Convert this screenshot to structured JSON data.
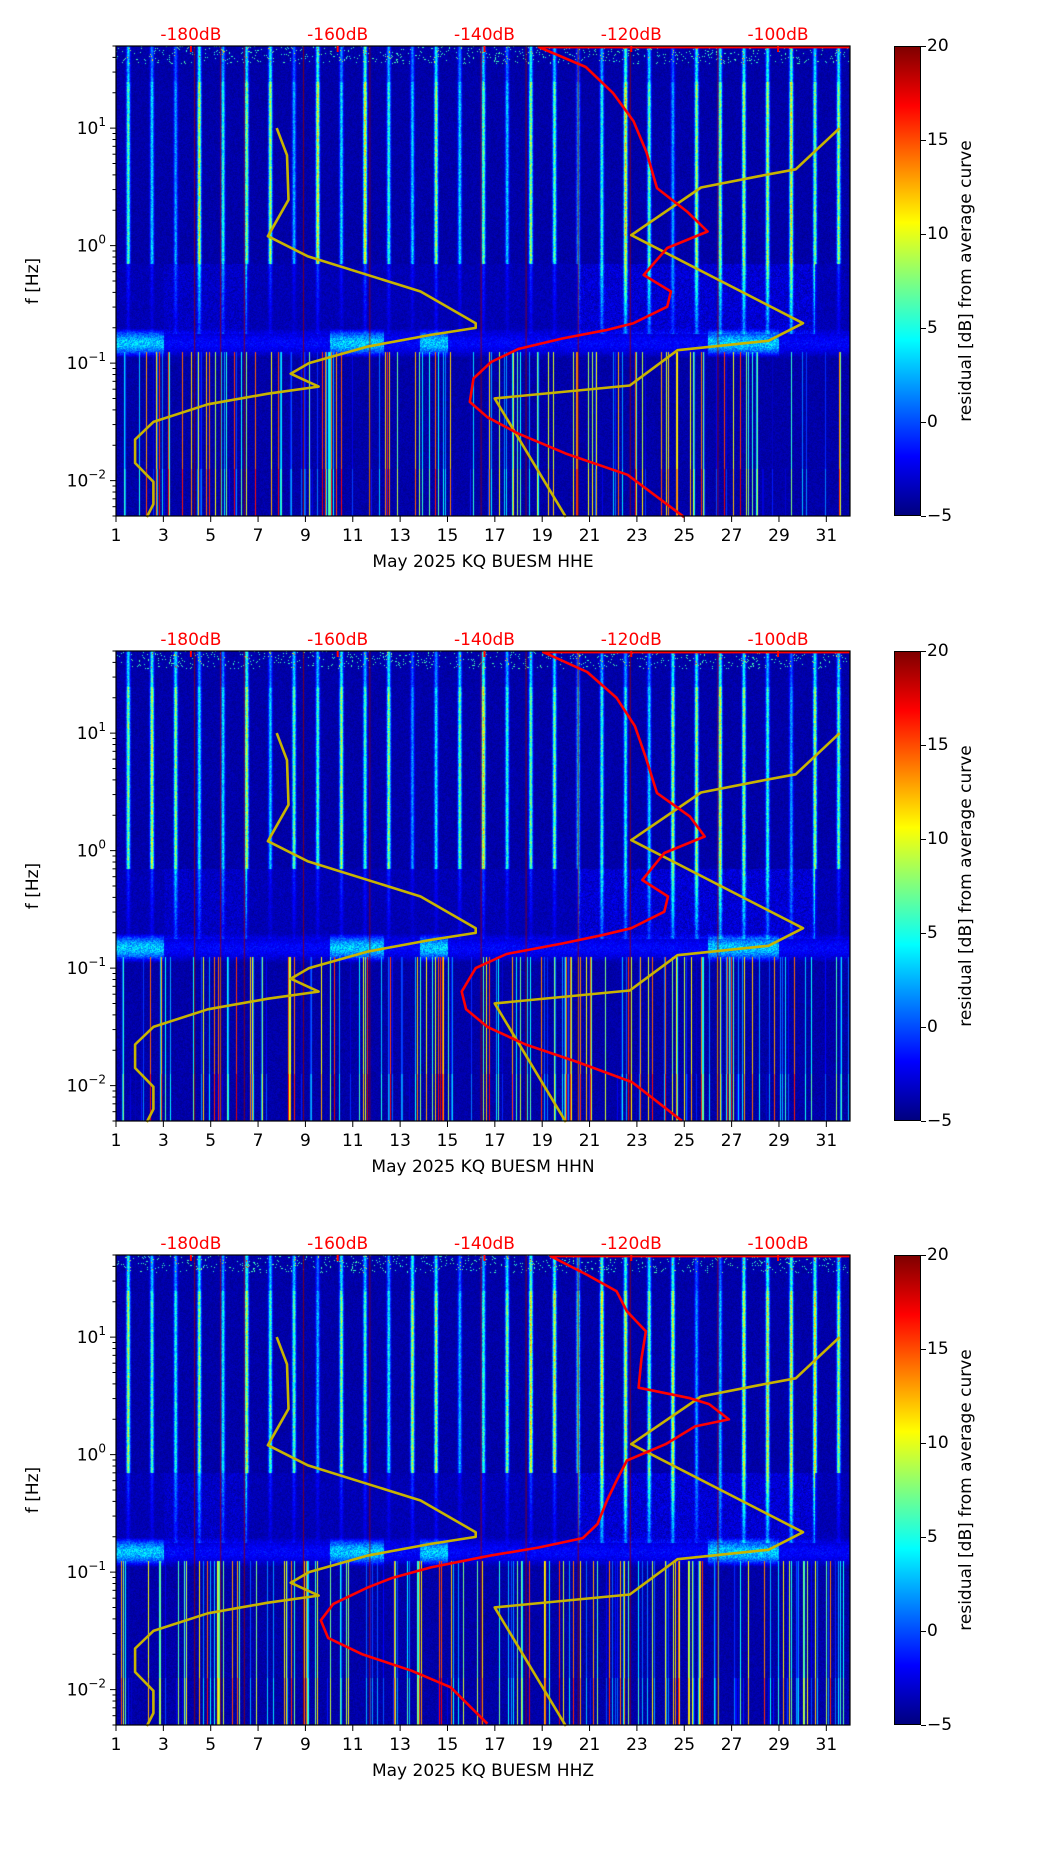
{
  "chart_data": [
    {
      "type": "heatmap",
      "xlabel": "May 2025 KQ BUESM  HHE",
      "ylabel": "f [Hz]",
      "xlim": [
        1,
        32
      ],
      "ylim": [
        0.005,
        50
      ],
      "yscale": "log",
      "xticks": [
        1,
        3,
        5,
        7,
        9,
        11,
        13,
        15,
        17,
        19,
        21,
        23,
        25,
        27,
        29,
        31
      ],
      "yticks": [
        {
          "exp": -2,
          "label": "10",
          "sup": "−2"
        },
        {
          "exp": -1,
          "label": "10",
          "sup": "−1"
        },
        {
          "exp": 0,
          "label": "10",
          "sup": "0"
        },
        {
          "exp": 1,
          "label": "10",
          "sup": "1"
        }
      ],
      "top_axis": {
        "xlim_db": [
          -190.2,
          -90.2
        ],
        "ticks": [
          -180,
          -160,
          -140,
          -120,
          -100
        ],
        "labels": [
          "-180dB",
          "-160dB",
          "-140dB",
          "-120dB",
          "-100dB"
        ],
        "color": "#ff0000"
      },
      "colorbar": {
        "label": "residual [dB] from average curve",
        "range": [
          -5,
          20
        ],
        "ticks": [
          "20",
          "15",
          "10",
          "5",
          "0",
          "−5"
        ],
        "cmap": "jet"
      },
      "model_curves": [
        {
          "name": "low-noise-model",
          "color": "#c8b400",
          "db": [
            -168.3,
            -166.9,
            -166.7,
            -169.5,
            -164.1,
            -148.7,
            -141.2,
            -141.2,
            -147.3,
            -156.0,
            -163.9,
            -166.4,
            -162.6,
            -169.5,
            -177.7,
            -185.1,
            -187.6,
            -187.6,
            -185.1,
            -185.1,
            -186.0
          ],
          "log10_freq_hz": [
            1.0,
            0.77,
            0.39,
            0.08,
            -0.09,
            -0.39,
            -0.66,
            -0.7,
            -0.76,
            -0.86,
            -1.0,
            -1.09,
            -1.2,
            -1.26,
            -1.35,
            -1.5,
            -1.65,
            -1.85,
            -2.01,
            -2.2,
            -2.31
          ]
        },
        {
          "name": "high-noise-model",
          "color": "#c8b400",
          "db": [
            -91.6,
            -97.6,
            -102.7,
            -110.5,
            -120.0,
            -96.6,
            -101.3,
            -113.7,
            -120.2,
            -138.6,
            -128.9
          ],
          "log10_freq_hz": [
            1.0,
            0.65,
            0.59,
            0.495,
            0.09,
            -0.66,
            -0.81,
            -0.89,
            -1.19,
            -1.3,
            -2.31
          ]
        }
      ],
      "median_psd": {
        "color": "#ff0000",
        "db": [
          -90.2,
          -132.6,
          -126.2,
          -122.5,
          -119.7,
          -117.9,
          -116.5,
          -112.4,
          -109.6,
          -115.1,
          -118.3,
          -114.6,
          -115.1,
          -119.7,
          -123.5,
          -129.4,
          -135.4,
          -139.1,
          -141.5,
          -142.0,
          -139.6,
          -135.4,
          -128.9,
          -120.5,
          -112.8
        ],
        "log10_freq_hz": [
          1.69,
          1.69,
          1.52,
          1.3,
          1.06,
          0.79,
          0.49,
          0.29,
          0.12,
          -0.02,
          -0.25,
          -0.39,
          -0.52,
          -0.66,
          -0.72,
          -0.79,
          -0.88,
          -0.99,
          -1.13,
          -1.33,
          -1.46,
          -1.6,
          -1.77,
          -1.95,
          -2.31
        ]
      }
    },
    {
      "type": "heatmap",
      "xlabel": "May 2025 KQ BUESM  HHN",
      "ylabel": "f [Hz]",
      "xlim": [
        1,
        32
      ],
      "ylim": [
        0.005,
        50
      ],
      "yscale": "log",
      "xticks": [
        1,
        3,
        5,
        7,
        9,
        11,
        13,
        15,
        17,
        19,
        21,
        23,
        25,
        27,
        29,
        31
      ],
      "yticks": [
        {
          "exp": -2,
          "label": "10",
          "sup": "−2"
        },
        {
          "exp": -1,
          "label": "10",
          "sup": "−1"
        },
        {
          "exp": 0,
          "label": "10",
          "sup": "0"
        },
        {
          "exp": 1,
          "label": "10",
          "sup": "1"
        }
      ],
      "top_axis": {
        "xlim_db": [
          -190.2,
          -90.2
        ],
        "ticks": [
          -180,
          -160,
          -140,
          -120,
          -100
        ],
        "labels": [
          "-180dB",
          "-160dB",
          "-140dB",
          "-120dB",
          "-100dB"
        ],
        "color": "#ff0000"
      },
      "colorbar": {
        "label": "residual [dB] from average curve",
        "range": [
          -5,
          20
        ],
        "ticks": [
          "20",
          "15",
          "10",
          "5",
          "0",
          "−5"
        ],
        "cmap": "jet"
      },
      "model_curves": [
        {
          "name": "low-noise-model",
          "color": "#c8b400",
          "db": [
            -168.3,
            -166.9,
            -166.7,
            -169.5,
            -164.1,
            -148.7,
            -141.2,
            -141.2,
            -147.3,
            -156.0,
            -163.9,
            -166.4,
            -162.6,
            -169.5,
            -177.7,
            -185.1,
            -187.6,
            -187.6,
            -185.1,
            -185.1,
            -186.0
          ],
          "log10_freq_hz": [
            1.0,
            0.77,
            0.39,
            0.08,
            -0.09,
            -0.39,
            -0.66,
            -0.7,
            -0.76,
            -0.86,
            -1.0,
            -1.09,
            -1.2,
            -1.26,
            -1.35,
            -1.5,
            -1.65,
            -1.85,
            -2.01,
            -2.2,
            -2.31
          ]
        },
        {
          "name": "high-noise-model",
          "color": "#c8b400",
          "db": [
            -91.6,
            -97.6,
            -102.7,
            -110.5,
            -120.0,
            -96.6,
            -101.3,
            -113.7,
            -120.2,
            -138.6,
            -128.9
          ],
          "log10_freq_hz": [
            1.0,
            0.65,
            0.59,
            0.495,
            0.09,
            -0.66,
            -0.81,
            -0.89,
            -1.19,
            -1.3,
            -2.31
          ]
        }
      ],
      "median_psd": {
        "color": "#ff0000",
        "db": [
          -90.2,
          -132.0,
          -126.0,
          -122.0,
          -119.5,
          -118.0,
          -116.5,
          -112.0,
          -110.0,
          -115.5,
          -118.5,
          -115.0,
          -115.5,
          -120.0,
          -124.0,
          -129.4,
          -137.0,
          -141.2,
          -143.1,
          -142.5,
          -139.6,
          -134.4,
          -127.3,
          -119.9,
          -113.1
        ],
        "log10_freq_hz": [
          1.69,
          1.69,
          1.52,
          1.3,
          1.06,
          0.79,
          0.49,
          0.29,
          0.12,
          -0.02,
          -0.25,
          -0.39,
          -0.52,
          -0.66,
          -0.72,
          -0.79,
          -0.88,
          -1.0,
          -1.2,
          -1.35,
          -1.5,
          -1.65,
          -1.8,
          -1.97,
          -2.3
        ]
      }
    },
    {
      "type": "heatmap",
      "xlabel": "May 2025 KQ BUESM  HHZ",
      "ylabel": "f [Hz]",
      "xlim": [
        1,
        32
      ],
      "ylim": [
        0.005,
        50
      ],
      "yscale": "log",
      "xticks": [
        1,
        3,
        5,
        7,
        9,
        11,
        13,
        15,
        17,
        19,
        21,
        23,
        25,
        27,
        29,
        31
      ],
      "yticks": [
        {
          "exp": -2,
          "label": "10",
          "sup": "−2"
        },
        {
          "exp": -1,
          "label": "10",
          "sup": "−1"
        },
        {
          "exp": 0,
          "label": "10",
          "sup": "0"
        },
        {
          "exp": 1,
          "label": "10",
          "sup": "1"
        }
      ],
      "top_axis": {
        "xlim_db": [
          -190.2,
          -90.2
        ],
        "ticks": [
          -180,
          -160,
          -140,
          -120,
          -100
        ],
        "labels": [
          "-180dB",
          "-160dB",
          "-140dB",
          "-120dB",
          "-100dB"
        ],
        "color": "#ff0000"
      },
      "colorbar": {
        "label": "residual [dB] from average curve",
        "range": [
          -5,
          20
        ],
        "ticks": [
          "20",
          "15",
          "10",
          "5",
          "0",
          "−5"
        ],
        "cmap": "jet"
      },
      "model_curves": [
        {
          "name": "low-noise-model",
          "color": "#c8b400",
          "db": [
            -168.3,
            -166.9,
            -166.7,
            -169.5,
            -164.1,
            -148.7,
            -141.2,
            -141.2,
            -147.3,
            -156.0,
            -163.9,
            -166.4,
            -162.6,
            -169.5,
            -177.7,
            -185.1,
            -187.6,
            -187.6,
            -185.1,
            -185.1,
            -186.0
          ],
          "log10_freq_hz": [
            1.0,
            0.77,
            0.39,
            0.08,
            -0.09,
            -0.39,
            -0.66,
            -0.7,
            -0.76,
            -0.86,
            -1.0,
            -1.09,
            -1.2,
            -1.26,
            -1.35,
            -1.5,
            -1.65,
            -1.85,
            -2.01,
            -2.2,
            -2.31
          ]
        },
        {
          "name": "high-noise-model",
          "color": "#c8b400",
          "db": [
            -91.6,
            -97.6,
            -102.7,
            -110.5,
            -120.0,
            -96.6,
            -101.3,
            -113.7,
            -120.2,
            -138.6,
            -128.9
          ],
          "log10_freq_hz": [
            1.0,
            0.65,
            0.59,
            0.495,
            0.09,
            -0.66,
            -0.81,
            -0.89,
            -1.19,
            -1.3,
            -2.31
          ]
        }
      ],
      "median_psd": {
        "color": "#ff0000",
        "db": [
          -90.2,
          -131.0,
          -126.0,
          -122.0,
          -120.6,
          -118.0,
          -118.6,
          -119.0,
          -112.0,
          -109.4,
          -106.7,
          -111.3,
          -115.3,
          -120.6,
          -122.0,
          -123.3,
          -124.6,
          -126.6,
          -132.6,
          -139.3,
          -147.3,
          -152.6,
          -155.9,
          -160.6,
          -162.3,
          -161.3,
          -156.6,
          -149.9,
          -144.6,
          -139.6
        ],
        "log10_freq_hz": [
          1.69,
          1.69,
          1.53,
          1.39,
          1.22,
          1.05,
          0.82,
          0.57,
          0.48,
          0.43,
          0.3,
          0.24,
          0.09,
          -0.05,
          -0.22,
          -0.39,
          -0.59,
          -0.71,
          -0.79,
          -0.86,
          -0.96,
          -1.05,
          -1.13,
          -1.27,
          -1.41,
          -1.56,
          -1.7,
          -1.84,
          -1.98,
          -2.29
        ]
      }
    }
  ]
}
